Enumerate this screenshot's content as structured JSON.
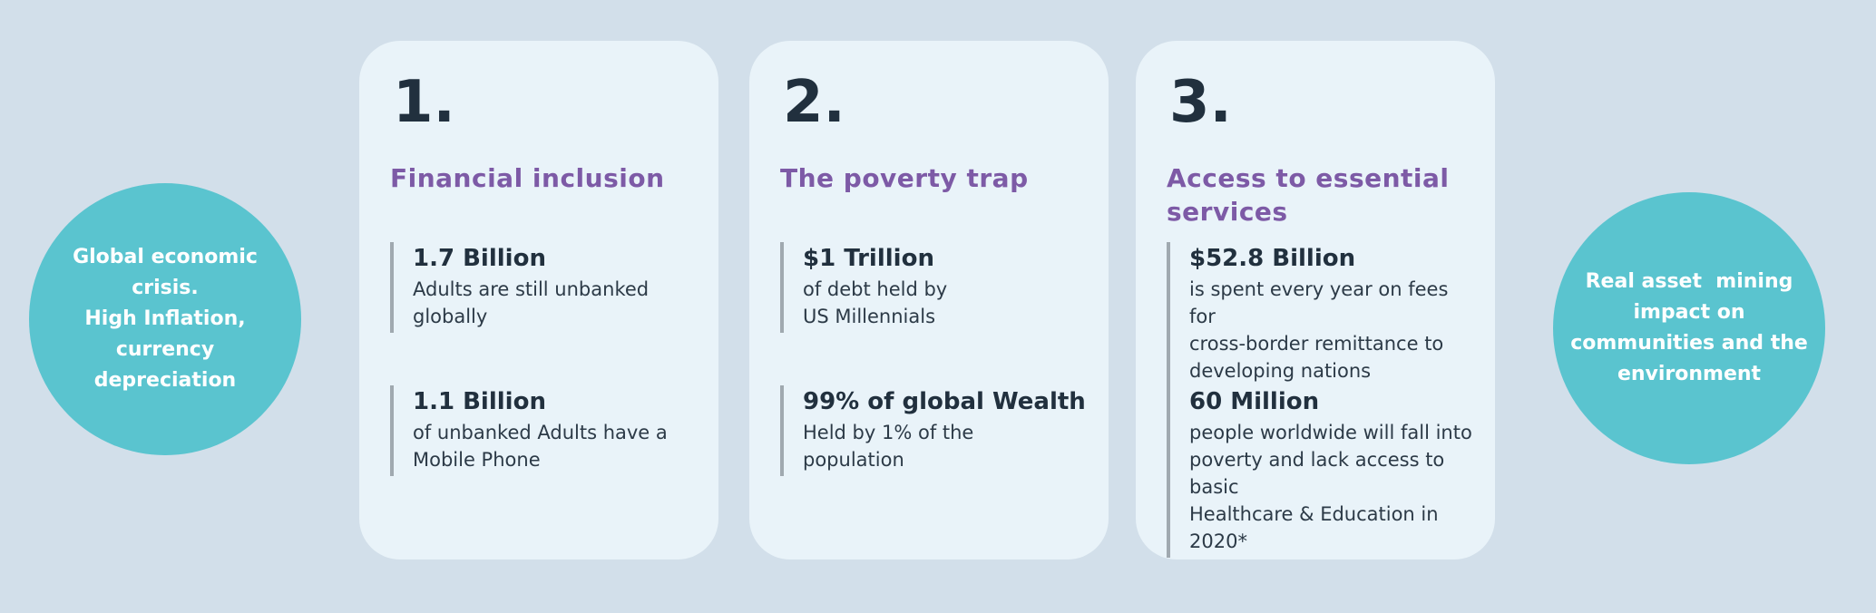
{
  "colors": {
    "background": "#D2DFEA",
    "card": "#E9F3F9",
    "circle_teal": "#5AC4CF",
    "heading_purple": "#7D5AA6",
    "text_navy": "#21303E",
    "stat_bar_gray": "#A0A9B0",
    "circle_text_white": "#FFFFFF"
  },
  "circles": {
    "left_text": "Global economic\ncrisis.\nHigh Inflation,\ncurrency\ndepreciation",
    "right_text": "Real asset  mining\nimpact on\ncommunities and the\nenvironment"
  },
  "cards": [
    {
      "number": "1.",
      "title": "Financial inclusion",
      "stats": [
        {
          "value": "1.7 Billion",
          "desc": "Adults are still unbanked\nglobally"
        },
        {
          "value": "1.1 Billion",
          "desc": "of unbanked Adults have a\nMobile Phone"
        }
      ]
    },
    {
      "number": "2.",
      "title": "The poverty trap",
      "stats": [
        {
          "value": "$1 Trillion",
          "desc": "of debt held by\nUS Millennials"
        },
        {
          "value": "99% of global Wealth",
          "desc": "Held by 1% of the\npopulation"
        }
      ]
    },
    {
      "number": "3.",
      "title": "Access to essential\nservices",
      "stats": [
        {
          "value": "$52.8 Billion",
          "desc": "is spent every year on fees for\ncross-border remittance to\ndeveloping nations"
        },
        {
          "value": "60 Million",
          "desc": "people worldwide will fall into\npoverty and lack access to basic\nHealthcare & Education in 2020*"
        }
      ]
    }
  ]
}
